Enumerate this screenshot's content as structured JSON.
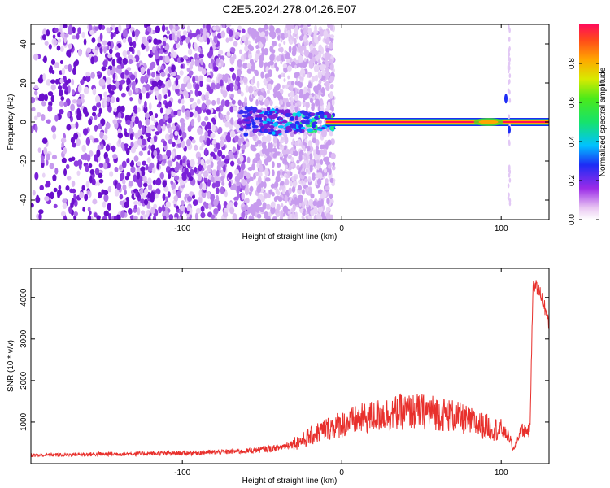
{
  "title": "C2E5.2024.278.04.26.E07",
  "colors": {
    "snr_line": "#e8302c",
    "zero_line": "#e8302c",
    "scatter_purple": "#8a2be2",
    "frame": "#000000"
  },
  "chart_data": [
    {
      "type": "heatmap",
      "xlabel": "Height of straight line (km)",
      "ylabel": "Frequency (Hz)",
      "xlim": [
        -195,
        130
      ],
      "ylim": [
        -50,
        50
      ],
      "xticks": [
        -100,
        0,
        100
      ],
      "yticks": [
        -40,
        -20,
        0,
        20,
        40
      ],
      "grid": false,
      "colorbar": {
        "label": "Normalized spectral amplitude",
        "range": [
          0.0,
          1.0
        ],
        "ticks": [
          0.0,
          0.2,
          0.4,
          0.6,
          0.8
        ],
        "colormap": "rainbow"
      },
      "features": {
        "noise_region_x": [
          -195,
          -30
        ],
        "dominant_frequency_hz": 0,
        "dominant_band_x": [
          -10,
          130
        ],
        "noise_spike_x": 105
      }
    },
    {
      "type": "line",
      "xlabel": "Height of straight line (km)",
      "ylabel": "SNR (10 * v/v)",
      "xlim": [
        -195,
        130
      ],
      "ylim": [
        0,
        4700
      ],
      "xticks": [
        -100,
        0,
        100
      ],
      "yticks": [
        1000,
        2000,
        3000,
        4000
      ],
      "grid": false,
      "series_trend": {
        "x": [
          -195,
          -150,
          -100,
          -60,
          -40,
          -25,
          -15,
          -5,
          10,
          25,
          40,
          55,
          70,
          85,
          100,
          105,
          108,
          112,
          118,
          120,
          123,
          126,
          130
        ],
        "y": [
          200,
          230,
          250,
          300,
          380,
          550,
          750,
          900,
          1050,
          1180,
          1250,
          1250,
          1150,
          950,
          800,
          650,
          300,
          800,
          800,
          4350,
          4200,
          4000,
          3300
        ]
      }
    }
  ]
}
